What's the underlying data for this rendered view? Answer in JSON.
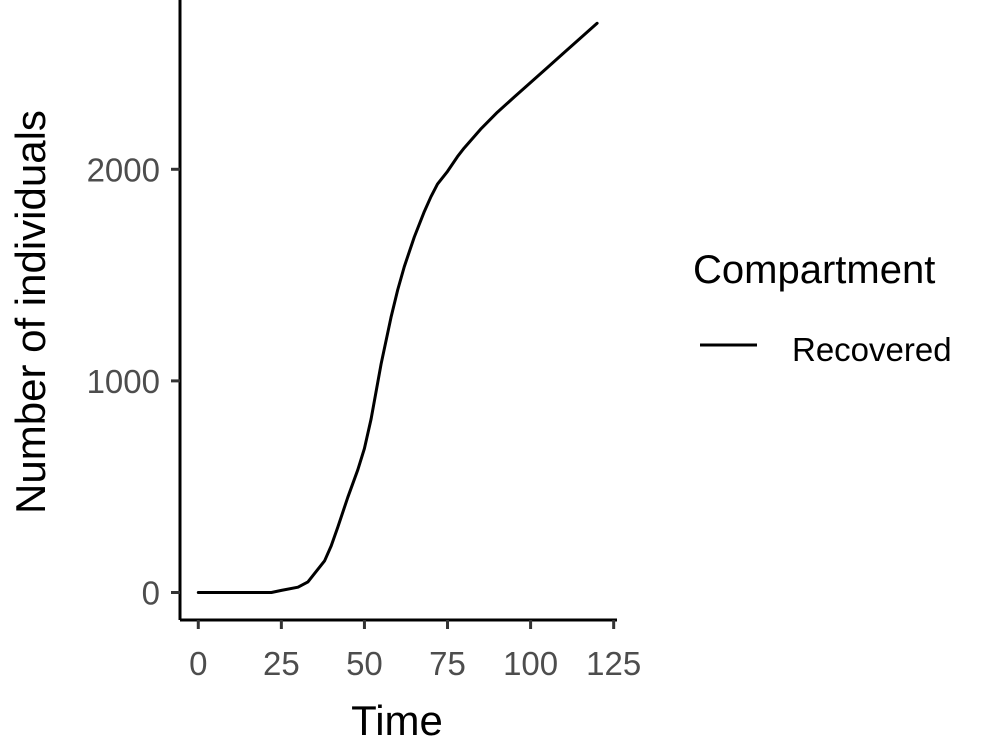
{
  "chart_data": {
    "type": "line",
    "title": "",
    "xlabel": "Time",
    "ylabel": "Number of individuals",
    "xlim": [
      -5.5,
      126
    ],
    "ylim": [
      -130,
      2800
    ],
    "x_ticks": [
      0,
      25,
      50,
      75,
      100,
      125
    ],
    "y_ticks": [
      0,
      1000,
      2000
    ],
    "grid": false,
    "legend": {
      "title": "Compartment",
      "placement": "right"
    },
    "series": [
      {
        "name": "Recovered",
        "color": "#000000",
        "x": [
          0,
          10,
          22,
          25,
          30,
          33,
          35,
          38,
          40,
          42,
          45,
          48,
          50,
          52,
          55,
          58,
          60,
          62,
          65,
          68,
          70,
          72,
          75,
          78,
          80,
          85,
          90,
          95,
          100,
          105,
          110,
          115,
          120
        ],
        "y": [
          0,
          0,
          0,
          10,
          25,
          50,
          90,
          150,
          220,
          310,
          450,
          580,
          680,
          820,
          1080,
          1300,
          1430,
          1540,
          1680,
          1800,
          1870,
          1930,
          1990,
          2060,
          2100,
          2190,
          2270,
          2340,
          2410,
          2480,
          2550,
          2620,
          2690
        ]
      }
    ]
  }
}
